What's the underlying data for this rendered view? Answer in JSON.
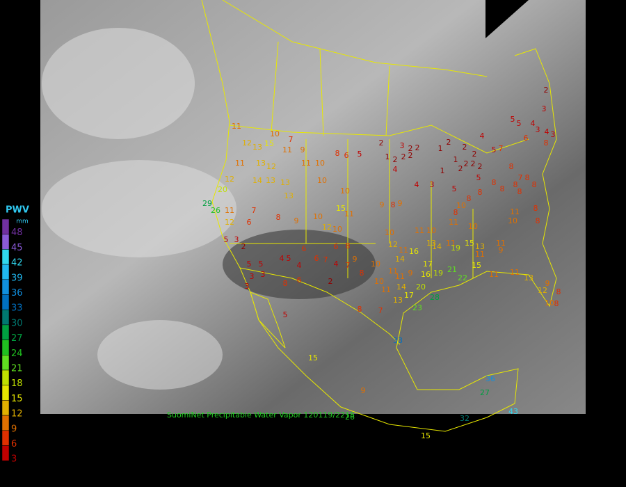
{
  "caption": "SuomiNet Precipitable Water Vapor 120119/2215",
  "legend": {
    "title": "PWV",
    "unit": "mm",
    "ticks": [
      48,
      45,
      42,
      39,
      36,
      33,
      30,
      27,
      24,
      21,
      18,
      15,
      12,
      9,
      6,
      3
    ],
    "colors": [
      "#7030a0",
      "#8a5ad8",
      "#30d8f0",
      "#20b8f0",
      "#1090e0",
      "#0070c0",
      "#007870",
      "#00a040",
      "#20c020",
      "#60e020",
      "#c0e000",
      "#e8e800",
      "#e0b000",
      "#e07000",
      "#e03000",
      "#c00000"
    ]
  },
  "stations": [
    2,
    3,
    5,
    5,
    4,
    3,
    4,
    3,
    4,
    6,
    8,
    5,
    7,
    2,
    3,
    2,
    1,
    2,
    2,
    2,
    2,
    1,
    2,
    2,
    1,
    2,
    2,
    2,
    1,
    4,
    4,
    3,
    5,
    5,
    2,
    2,
    8,
    6,
    5,
    10,
    7,
    11,
    12,
    13,
    15,
    11,
    9,
    11,
    10,
    12,
    11,
    13,
    13,
    12,
    20,
    14,
    13,
    13,
    10,
    10,
    29,
    26,
    11,
    12,
    7,
    6,
    8,
    9,
    10,
    12,
    10,
    15,
    11,
    9,
    8,
    9,
    8,
    7,
    8,
    8,
    8,
    8,
    8,
    8,
    8,
    8,
    10,
    8,
    11,
    10,
    11,
    14,
    11,
    10,
    11,
    10,
    8,
    8,
    10,
    12,
    11,
    16,
    13,
    14,
    19,
    15,
    13,
    15,
    11,
    11,
    9,
    17,
    16,
    10,
    11,
    11,
    9,
    19,
    21,
    22,
    20,
    11,
    14,
    10,
    17,
    13,
    28,
    23,
    33,
    11,
    11,
    13,
    12,
    9,
    10,
    8,
    8,
    6,
    6,
    8,
    5,
    4,
    6,
    7,
    4,
    7,
    9,
    8,
    2,
    6,
    8,
    5,
    4,
    3,
    3,
    2,
    3,
    5,
    5,
    3,
    5,
    7,
    8,
    15,
    9,
    15,
    32,
    36,
    27,
    43,
    26
  ]
}
